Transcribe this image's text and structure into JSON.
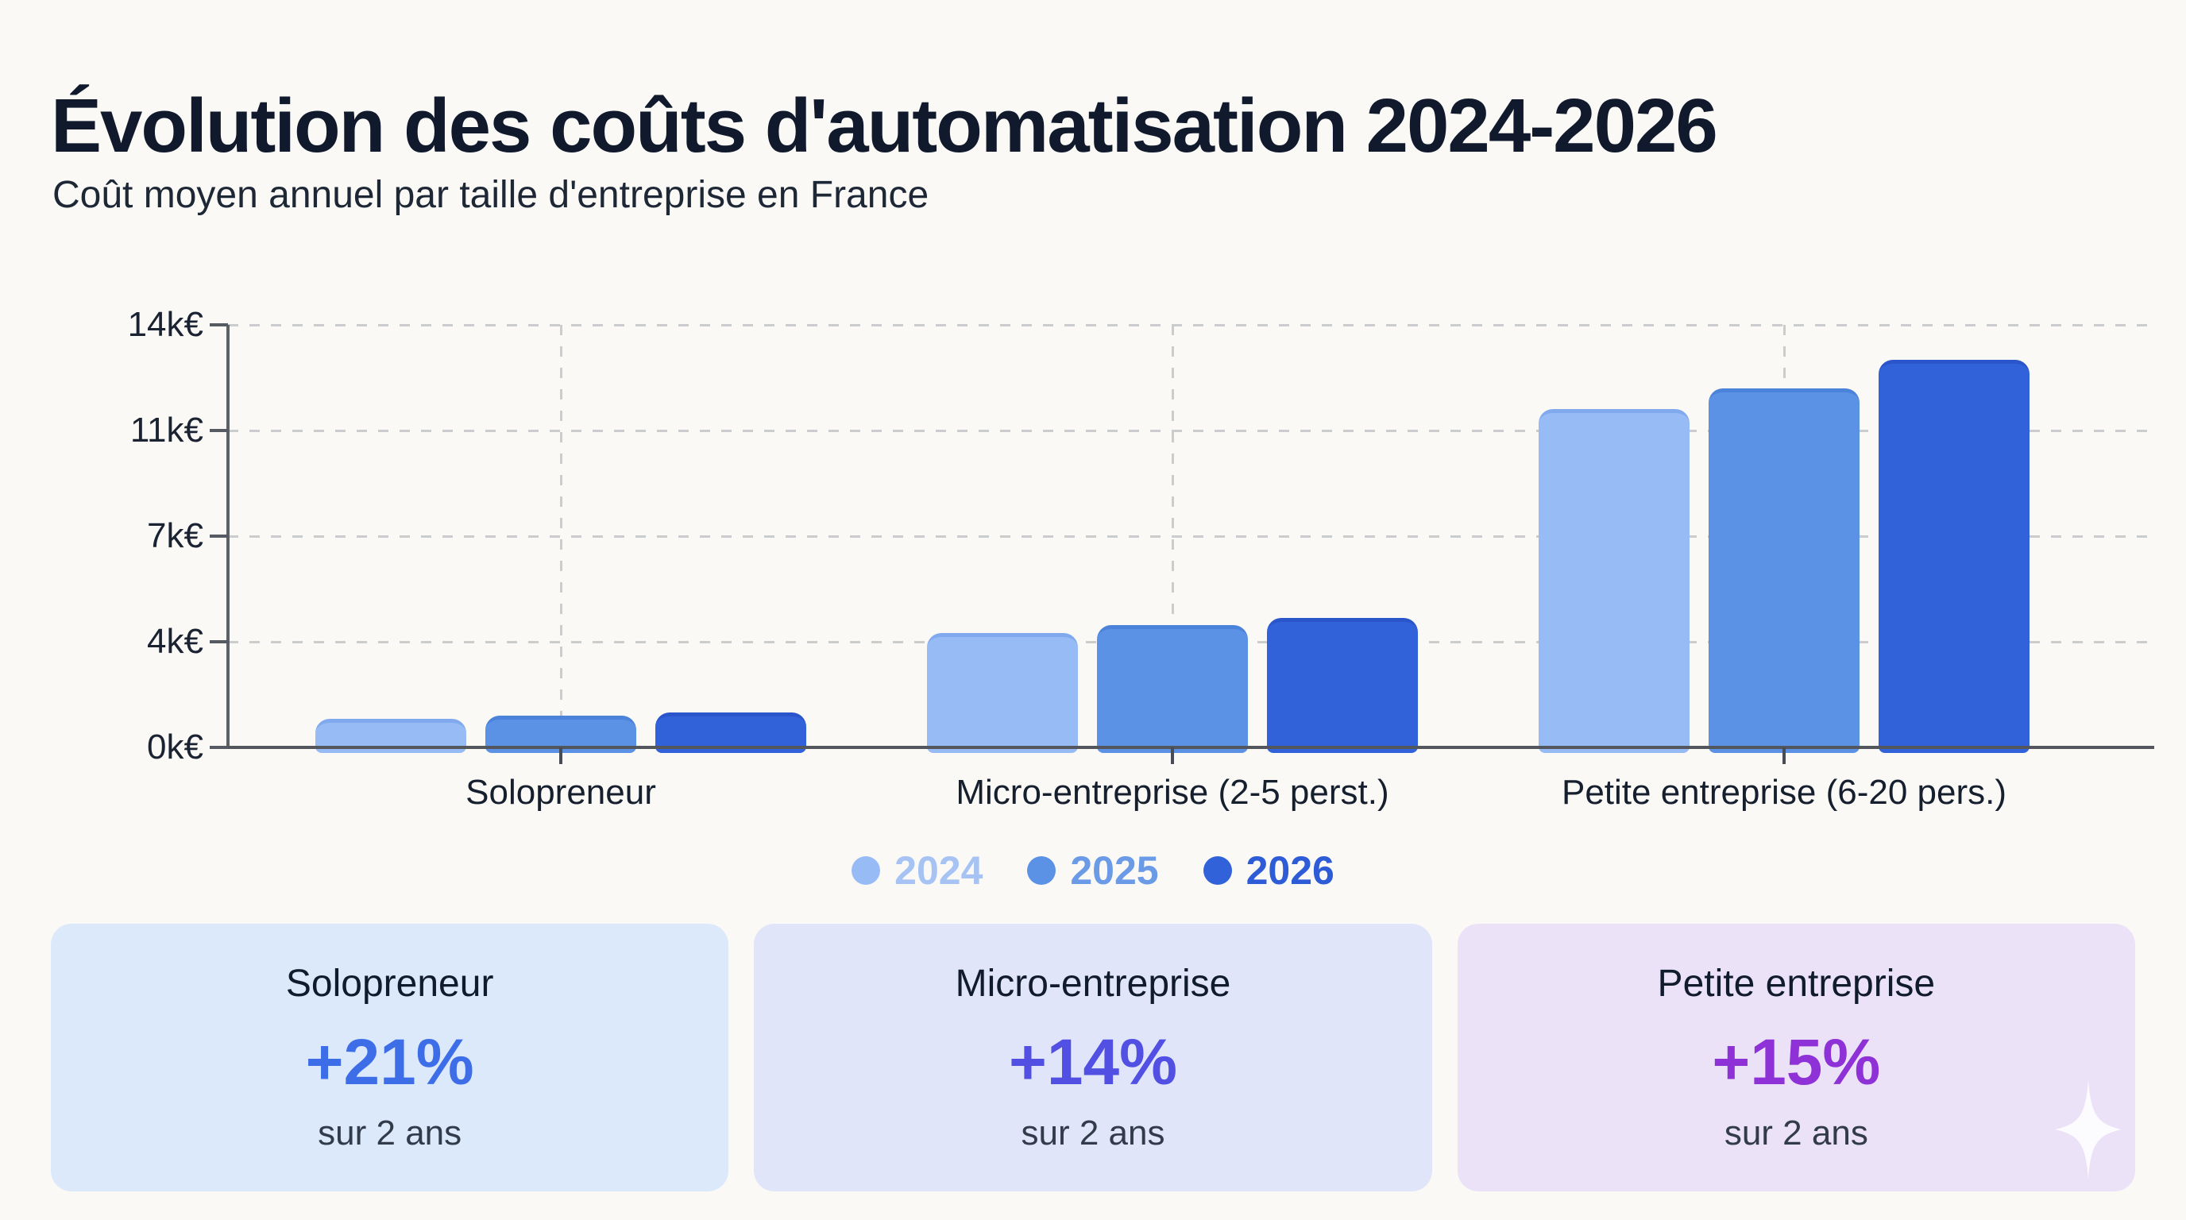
{
  "header": {
    "title": "Évolution des coûts d'automatisation 2024-2026",
    "subtitle": "Coût moyen annuel par taille d'entreprise en France"
  },
  "chart_data": {
    "type": "bar",
    "title": "Évolution des coûts d'automatisation 2024-2026",
    "subtitle": "Coût moyen annuel par taille d'entreprise en France",
    "unit": "€",
    "categories": [
      "Solopreneur",
      "Micro-entreprise (2-5 perst.)",
      "Petite entreprise (6-20 pers.)"
    ],
    "series": [
      {
        "name": "2024",
        "color": "#97bbf4",
        "edge_color": "#80a9ee",
        "label_color": "#a6c3f3",
        "values": [
          950,
          3800,
          11200
        ]
      },
      {
        "name": "2025",
        "color": "#5c92e5",
        "edge_color": "#4b83da",
        "label_color": "#6b9ae6",
        "values": [
          1050,
          4050,
          11900
        ]
      },
      {
        "name": "2026",
        "color": "#3162da",
        "edge_color": "#2a55cb",
        "label_color": "#2e5cd7",
        "values": [
          1150,
          4300,
          12850
        ]
      }
    ],
    "yticks": [
      {
        "label": "0k€",
        "value": 0
      },
      {
        "label": "4k€",
        "value": 3500
      },
      {
        "label": "7k€",
        "value": 7000
      },
      {
        "label": "11k€",
        "value": 10500
      },
      {
        "label": "14k€",
        "value": 14000
      }
    ],
    "ylim": [
      0,
      14000
    ],
    "xlabel": "",
    "ylabel": "",
    "grid": true,
    "legend_position": "bottom"
  },
  "cards": [
    {
      "title": "Solopreneur",
      "pct": "+21%",
      "caption": "sur 2 ans",
      "bg": "#dce9fb",
      "accent": "#3e6de8"
    },
    {
      "title": "Micro-entreprise",
      "pct": "+14%",
      "caption": "sur 2 ans",
      "bg": "#e1e5fa",
      "accent": "#5150e3"
    },
    {
      "title": "Petite entreprise",
      "pct": "+15%",
      "caption": "sur 2 ans",
      "bg": "#ebe2f8",
      "accent": "#8e31d6"
    }
  ]
}
